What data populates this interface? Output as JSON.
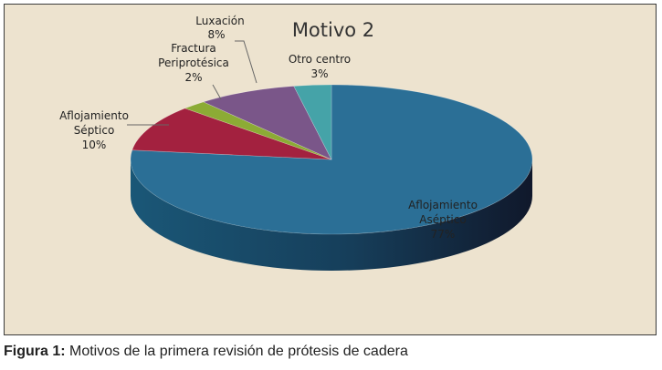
{
  "chart_data": {
    "type": "pie",
    "title": "Motivo 2",
    "categories": [
      "Aflojamiento Aséptico",
      "Aflojamiento Séptico",
      "Fractura Periprotésica",
      "Luxación",
      "Otro centro"
    ],
    "values": [
      77,
      10,
      2,
      8,
      3
    ],
    "series": [
      {
        "values": [
          77,
          10,
          2,
          8,
          3
        ]
      }
    ],
    "labels": [
      {
        "lines": [
          "Aflojamiento",
          "Aséptico",
          "77%"
        ]
      },
      {
        "lines": [
          "Aflojamiento",
          "Séptico",
          "10%"
        ]
      },
      {
        "lines": [
          "Fractura",
          "Periprotésica",
          "2%"
        ]
      },
      {
        "lines": [
          "Luxación",
          "8%"
        ]
      },
      {
        "lines": [
          "Otro centro",
          "3%"
        ]
      }
    ],
    "colors": [
      "#2b6f96",
      "#a3213f",
      "#8cab35",
      "#7a5689",
      "#45a3a8"
    ],
    "legend": "none",
    "style": "3d"
  },
  "caption": {
    "label": "Figura 1:",
    "text": " Motivos de la primera revisión de prótesis de cadera"
  }
}
